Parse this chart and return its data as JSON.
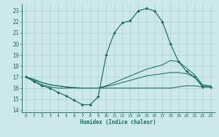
{
  "bg_color": "#cce8e8",
  "grid_color": "#aacece",
  "line_color": "#1a6e60",
  "xlabel": "Humidex (Indice chaleur)",
  "xlim": [
    -0.5,
    23.5
  ],
  "ylim": [
    13.8,
    23.6
  ],
  "yticks": [
    14,
    15,
    16,
    17,
    18,
    19,
    20,
    21,
    22,
    23
  ],
  "xticks": [
    0,
    1,
    2,
    3,
    4,
    5,
    6,
    7,
    8,
    9,
    10,
    11,
    12,
    13,
    14,
    15,
    16,
    17,
    18,
    19,
    20,
    21,
    22,
    23
  ],
  "curve1_x": [
    0,
    1,
    2,
    3,
    4,
    5,
    6,
    7,
    8,
    9,
    10,
    11,
    12,
    13,
    14,
    15,
    16,
    17,
    18,
    19,
    20,
    21,
    22,
    23
  ],
  "curve1_y": [
    17.0,
    16.6,
    16.2,
    16.0,
    15.6,
    15.3,
    14.9,
    14.5,
    14.5,
    15.2,
    19.0,
    21.0,
    21.9,
    22.1,
    23.0,
    23.2,
    23.0,
    22.0,
    20.0,
    18.4,
    17.5,
    17.0,
    16.1,
    16.1
  ],
  "curve2_x": [
    0,
    1,
    2,
    3,
    4,
    5,
    6,
    7,
    8,
    9,
    10,
    11,
    12,
    13,
    14,
    15,
    16,
    17,
    18,
    19,
    20,
    21,
    22,
    23
  ],
  "curve2_y": [
    17.0,
    16.8,
    16.5,
    16.3,
    16.2,
    16.1,
    16.0,
    16.0,
    16.0,
    16.0,
    16.2,
    16.5,
    16.8,
    17.1,
    17.4,
    17.7,
    17.9,
    18.1,
    18.5,
    18.4,
    17.8,
    17.2,
    16.3,
    16.2
  ],
  "curve3_x": [
    0,
    1,
    2,
    3,
    4,
    5,
    6,
    7,
    8,
    9,
    10,
    11,
    12,
    13,
    14,
    15,
    16,
    17,
    18,
    19,
    20,
    21,
    22,
    23
  ],
  "curve3_y": [
    17.0,
    16.7,
    16.5,
    16.3,
    16.2,
    16.1,
    16.05,
    16.0,
    16.0,
    16.0,
    16.15,
    16.3,
    16.5,
    16.7,
    16.9,
    17.1,
    17.2,
    17.3,
    17.4,
    17.4,
    17.3,
    17.0,
    16.2,
    16.1
  ],
  "curve4_x": [
    0,
    1,
    2,
    3,
    4,
    5,
    6,
    7,
    8,
    9,
    10,
    11,
    12,
    13,
    14,
    15,
    16,
    17,
    18,
    19,
    20,
    21,
    22,
    23
  ],
  "curve4_y": [
    17.0,
    16.6,
    16.3,
    16.1,
    16.0,
    16.0,
    16.0,
    16.0,
    16.0,
    16.0,
    16.0,
    16.0,
    16.0,
    16.0,
    16.0,
    16.0,
    16.0,
    16.0,
    16.0,
    16.1,
    16.2,
    16.2,
    16.1,
    16.1
  ]
}
